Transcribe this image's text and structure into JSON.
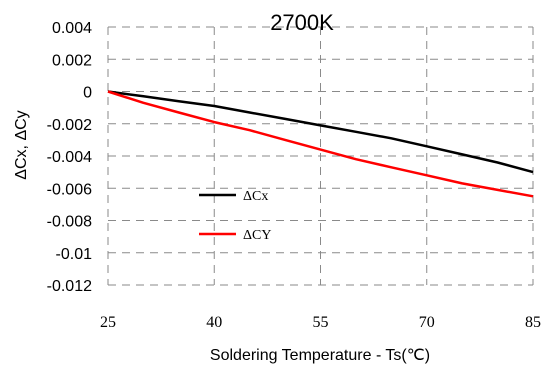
{
  "chart_data": {
    "type": "line",
    "title": "2700K",
    "xlabel": "Soldering Temperature - Ts(℃)",
    "ylabel": "ΔCx, ΔCy",
    "xlim": [
      25,
      85
    ],
    "ylim": [
      -0.012,
      0.004
    ],
    "x_ticks": [
      25,
      40,
      55,
      70,
      85
    ],
    "x_tick_labels": [
      "25",
      "40",
      "55",
      "70",
      "85"
    ],
    "y_ticks": [
      0.004,
      0.002,
      0,
      -0.002,
      -0.004,
      -0.006,
      -0.008,
      -0.01,
      -0.012
    ],
    "y_tick_labels": [
      "0.004",
      "0.002",
      "0",
      "-0.002",
      "-0.004",
      "-0.006",
      "-0.008",
      "-0.01",
      "-0.012"
    ],
    "grid": true,
    "legend_position": "left-center",
    "series": [
      {
        "name": "ΔCx",
        "color": "#000000",
        "x": [
          25,
          30,
          35,
          40,
          45,
          50,
          55,
          60,
          65,
          70,
          75,
          80,
          85
        ],
        "y": [
          0,
          -0.0003,
          -0.0006,
          -0.0009,
          -0.0013,
          -0.0017,
          -0.0021,
          -0.0025,
          -0.0029,
          -0.0034,
          -0.0039,
          -0.0044,
          -0.005
        ]
      },
      {
        "name": "ΔCY",
        "color": "#ff0000",
        "x": [
          25,
          30,
          35,
          40,
          45,
          50,
          55,
          60,
          65,
          70,
          75,
          80,
          85
        ],
        "y": [
          0,
          -0.0007,
          -0.0013,
          -0.0019,
          -0.0024,
          -0.003,
          -0.0036,
          -0.0042,
          -0.0047,
          -0.0052,
          -0.0057,
          -0.0061,
          -0.0065
        ]
      }
    ]
  }
}
